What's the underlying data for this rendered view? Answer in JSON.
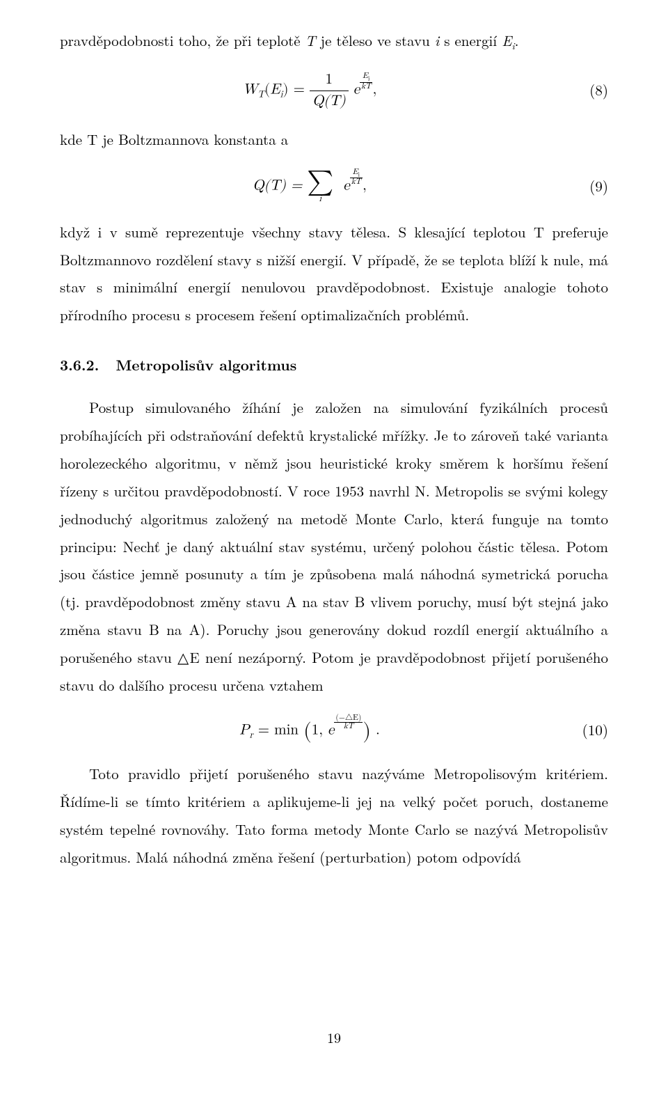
{
  "para1_lead": "pravděpodobnosti toho, že při teplotě ",
  "para1_T": "T",
  "para1_mid1": " je těleso ve stavu ",
  "para1_i": "i",
  "para1_mid2": " s energií ",
  "para1_Ei": "E",
  "para1_i_sub": "i",
  "para1_end": ".",
  "eq8_lhs_W": "W",
  "eq8_lhs_Tsub": "T",
  "eq8_lhs_open": "(",
  "eq8_lhs_E": "E",
  "eq8_lhs_i": "i",
  "eq8_lhs_close": ") = ",
  "eq8_frac_num": "1",
  "eq8_frac_den_Q": "Q",
  "eq8_frac_den_T": "(T)",
  "eq8_e": "e",
  "eq8_exp_num_E": "E",
  "eq8_exp_num_i": "i",
  "eq8_exp_den": "kT",
  "eq8_comma": ",",
  "eq8_num": "(8)",
  "para2": "kde T je Boltzmannova konstanta a",
  "eq9_Q": "Q",
  "eq9_of_T": "(T) = ",
  "eq9_sum_lo": "i",
  "eq9_e": "e",
  "eq9_exp_num_E": "E",
  "eq9_exp_num_i": "i",
  "eq9_exp_den": "kT",
  "eq9_comma": ",",
  "eq9_num": "(9)",
  "para3": "když i v sumě reprezentuje všechny stavy tělesa. S klesající teplotou T preferuje Boltzmannovo rozdělení stavy s nižší energií. V případě, že se teplota blíží k nule, má stav s minimální energií nenulovou pravděpodobnost. Existuje analogie tohoto přírodního procesu s procesem řešení optimalizačních problémů.",
  "sec_num": "3.6.2.",
  "sec_title": "Metropolisův algoritmus",
  "para4": "Postup simulovaného žíhání je založen na simulování fyzikálních procesů probíhajících při odstraňování defektů krystalické mřížky. Je to zároveň také varianta horolezeckého algoritmu, v němž jsou heuristické kroky směrem k horšímu řešení řízeny s určitou pravděpodobností. V roce 1953 navrhl N. Metropolis se svými kolegy jednoduchý algoritmus založený na metodě Monte Carlo, která funguje na tomto principu: Nechť je daný aktuální stav systému, určený polohou částic tělesa. Potom jsou částice jemně posunuty a tím je způsobena malá náhodná symetrická porucha (tj. pravděpodobnost změny stavu A na stav B vlivem poruchy, musí být stejná jako změna stavu B na A). Poruchy jsou generovány dokud rozdíl energií aktuálního a porušeného stavu △E není nezáporný. Potom je pravděpodobnost přijetí porušeného stavu do dalšího procesu určena vztahem",
  "eq10_Pr_P": "P",
  "eq10_Pr_r": "r",
  "eq10_eq_min": " = min ",
  "eq10_open": "(",
  "eq10_one": "1, ",
  "eq10_e": "e",
  "eq10_exp_num": "(−△E)",
  "eq10_exp_den": "kT",
  "eq10_close": ")",
  "eq10_period": " .",
  "eq10_num": "(10)",
  "para5": "Toto pravidlo přijetí porušeného stavu nazýváme Metropolisovým kritériem. Řídíme-li se tímto kritériem a aplikujeme-li jej na velký počet poruch, dostaneme systém tepelné rovnováhy. Tato forma metody Monte Carlo se nazývá Metropolisův algoritmus. Malá náhodná změna řešení (perturbation) potom odpovídá",
  "page_number": "19"
}
